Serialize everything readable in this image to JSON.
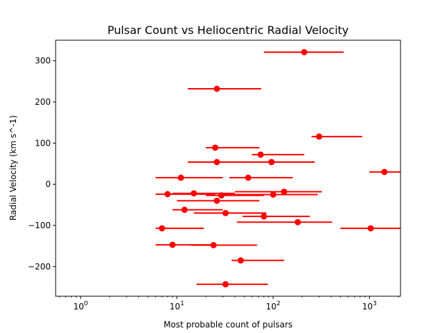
{
  "chart_data": {
    "type": "scatter",
    "title": "Pulsar Count vs Heliocentric Radial Velocity",
    "xlabel": "Most probable count of pulsars",
    "ylabel": "Radial Velocity (km s^-1)",
    "xscale": "log",
    "xlim": [
      0.55,
      2100
    ],
    "ylim": [
      -272,
      350
    ],
    "x_ticks": [
      {
        "value": 1,
        "base": "10",
        "exp": "0"
      },
      {
        "value": 10,
        "base": "10",
        "exp": "1"
      },
      {
        "value": 100,
        "base": "10",
        "exp": "2"
      },
      {
        "value": 1000,
        "base": "10",
        "exp": "3"
      }
    ],
    "y_ticks": [
      -200,
      -100,
      0,
      100,
      200,
      300
    ],
    "grid": false,
    "legend": "none",
    "marker_color": "#ff0000",
    "points": [
      {
        "x": 210,
        "y": 321,
        "xerr": [
          80,
          540
        ]
      },
      {
        "x": 26,
        "y": 232,
        "xerr": [
          13,
          75
        ]
      },
      {
        "x": 300,
        "y": 116,
        "xerr": [
          250,
          840
        ]
      },
      {
        "x": 25,
        "y": 89,
        "xerr": [
          20,
          72
        ]
      },
      {
        "x": 74,
        "y": 72,
        "xerr": [
          60,
          210
        ]
      },
      {
        "x": 26,
        "y": 54,
        "xerr": [
          13,
          270
        ]
      },
      {
        "x": 96,
        "y": 54,
        "xerr": [
          13,
          270
        ]
      },
      {
        "x": 1430,
        "y": 30,
        "xerr": [
          1000,
          2100
        ]
      },
      {
        "x": 11,
        "y": 16,
        "xerr": [
          6,
          30
        ]
      },
      {
        "x": 55,
        "y": 16,
        "xerr": [
          35,
          160
        ]
      },
      {
        "x": 130,
        "y": -18,
        "xerr": [
          40,
          320
        ]
      },
      {
        "x": 15,
        "y": -22,
        "xerr": [
          9,
          40
        ]
      },
      {
        "x": 8,
        "y": -24,
        "xerr": [
          6,
          25
        ]
      },
      {
        "x": 100,
        "y": -25,
        "xerr": [
          28,
          290
        ]
      },
      {
        "x": 29,
        "y": -27,
        "xerr": [
          20,
          80
        ]
      },
      {
        "x": 26,
        "y": -40,
        "xerr": [
          10,
          72
        ]
      },
      {
        "x": 12,
        "y": -62,
        "xerr": [
          9,
          30
        ]
      },
      {
        "x": 32,
        "y": -70,
        "xerr": [
          15,
          85
        ]
      },
      {
        "x": 80,
        "y": -78,
        "xerr": [
          48,
          240
        ]
      },
      {
        "x": 180,
        "y": -92,
        "xerr": [
          42,
          410
        ]
      },
      {
        "x": 7,
        "y": -107,
        "xerr": [
          6,
          19
        ]
      },
      {
        "x": 1030,
        "y": -107,
        "xerr": [
          500,
          2100
        ]
      },
      {
        "x": 9,
        "y": -147,
        "xerr": [
          6,
          23
        ]
      },
      {
        "x": 24,
        "y": -148,
        "xerr": [
          14,
          68
        ]
      },
      {
        "x": 46,
        "y": -185,
        "xerr": [
          37,
          130
        ]
      },
      {
        "x": 32,
        "y": -243,
        "xerr": [
          16,
          88
        ]
      }
    ]
  }
}
